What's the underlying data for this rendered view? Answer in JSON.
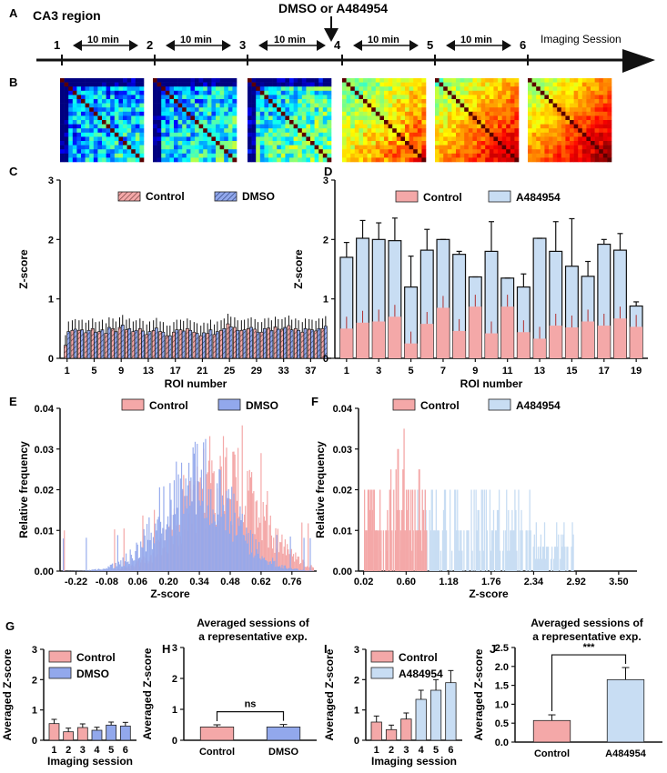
{
  "colors": {
    "control": "#f4a8a8",
    "dmso": "#92a8ec",
    "a484954": "#c8ddf3",
    "axis": "#111111",
    "ctrl_stroke": "#222222"
  },
  "timeline": {
    "panel": "A",
    "region": "CA3 region",
    "drug_label": "DMSO or A484954",
    "sessions": [
      "1",
      "2",
      "3",
      "4",
      "5",
      "6"
    ],
    "interval_label": "10 min",
    "end_label": "Imaging Session"
  },
  "heatmaps": {
    "panel": "B",
    "coherence": [
      0.35,
      0.4,
      0.5,
      0.78,
      0.88,
      0.92
    ]
  },
  "chart_data": [
    {
      "id": "C",
      "type": "bar",
      "ylabel": "Z-score",
      "xlabel": "ROI number",
      "ylim": [
        0,
        3
      ],
      "yticks": [
        "0",
        "1",
        "2",
        "3"
      ],
      "xticks": [
        "1",
        "5",
        "9",
        "13",
        "17",
        "21",
        "25",
        "29",
        "33",
        "37"
      ],
      "legend": [
        "Control",
        "DMSO"
      ],
      "control": [
        0.22,
        0.47,
        0.47,
        0.43,
        0.5,
        0.45,
        0.42,
        0.5,
        0.52,
        0.48,
        0.45,
        0.5,
        0.4,
        0.47,
        0.45,
        0.38,
        0.44,
        0.48,
        0.5,
        0.44,
        0.38,
        0.42,
        0.4,
        0.47,
        0.58,
        0.52,
        0.47,
        0.5,
        0.49,
        0.44,
        0.51,
        0.53,
        0.49,
        0.55,
        0.5,
        0.44,
        0.49,
        0.46,
        0.5
      ],
      "dmso": [
        0.45,
        0.49,
        0.48,
        0.47,
        0.44,
        0.48,
        0.52,
        0.45,
        0.56,
        0.5,
        0.47,
        0.46,
        0.45,
        0.51,
        0.44,
        0.38,
        0.48,
        0.46,
        0.47,
        0.42,
        0.43,
        0.48,
        0.45,
        0.5,
        0.53,
        0.47,
        0.48,
        0.52,
        0.44,
        0.5,
        0.47,
        0.49,
        0.52,
        0.48,
        0.47,
        0.5,
        0.48,
        0.5,
        0.54
      ]
    },
    {
      "id": "D",
      "type": "bar",
      "ylabel": "Z-score",
      "xlabel": "ROI number",
      "ylim": [
        0,
        3
      ],
      "yticks": [
        "0",
        "1",
        "2",
        "3"
      ],
      "xticks": [
        "1",
        "3",
        "5",
        "7",
        "9",
        "11",
        "13",
        "15",
        "17",
        "19"
      ],
      "legend": [
        "Control",
        "A484954"
      ],
      "control": [
        0.5,
        0.6,
        0.62,
        0.7,
        0.25,
        0.58,
        0.85,
        0.46,
        0.87,
        0.42,
        0.87,
        0.44,
        0.33,
        0.55,
        0.52,
        0.62,
        0.55,
        0.67,
        0.53
      ],
      "a484954": [
        1.7,
        2.02,
        2.0,
        1.98,
        1.2,
        1.82,
        2.0,
        1.75,
        1.37,
        1.8,
        1.35,
        1.2,
        2.02,
        1.8,
        1.55,
        1.38,
        1.92,
        1.82,
        0.88
      ]
    },
    {
      "id": "E",
      "type": "histogram",
      "ylabel": "Relative frequency",
      "xlabel": "Z-score",
      "ylim": [
        0,
        0.04
      ],
      "yticks": [
        "0.00",
        "0.01",
        "0.02",
        "0.03",
        "0.04"
      ],
      "xticks": [
        "-0.22",
        "-0.08",
        "0.06",
        "0.20",
        "0.34",
        "0.48",
        "0.62",
        "0.76"
      ],
      "legend": [
        "Control",
        "DMSO"
      ],
      "control_peak": 0.44,
      "dmso_peak": 0.33
    },
    {
      "id": "F",
      "type": "histogram",
      "ylabel": "Relative frequency",
      "xlabel": "Z-score",
      "ylim": [
        0,
        0.04
      ],
      "yticks": [
        "0.00",
        "0.01",
        "0.02",
        "0.03",
        "0.04"
      ],
      "xticks": [
        "0.02",
        "0.60",
        "1.18",
        "1.76",
        "2.34",
        "2.92",
        "3.50"
      ],
      "legend": [
        "Control",
        "A484954"
      ],
      "control_range": [
        0.02,
        0.88
      ],
      "a484954_range": [
        0.75,
        2.9
      ]
    },
    {
      "id": "G",
      "type": "bar",
      "ylabel": "Averaged Z-score",
      "xlabel": "Imaging session",
      "ylim": [
        0,
        3
      ],
      "yticks": [
        "0",
        "1",
        "2",
        "3"
      ],
      "categories": [
        "1",
        "2",
        "3",
        "4",
        "5",
        "6"
      ],
      "legend": [
        "Control",
        "DMSO"
      ],
      "values": [
        0.55,
        0.28,
        0.42,
        0.33,
        0.5,
        0.47
      ],
      "errors": [
        0.14,
        0.12,
        0.12,
        0.1,
        0.1,
        0.12
      ]
    },
    {
      "id": "H",
      "type": "bar",
      "title": "Averaged sessions of a representative exp.",
      "ylabel": "Averaged Z-score",
      "ylim": [
        0,
        3
      ],
      "yticks": [
        "0",
        "1",
        "2",
        "3"
      ],
      "categories": [
        "Control",
        "DMSO"
      ],
      "values": [
        0.43,
        0.43
      ],
      "errors": [
        0.07,
        0.08
      ],
      "significance": "ns"
    },
    {
      "id": "I",
      "type": "bar",
      "ylabel": "Averaged Z-score",
      "xlabel": "Imaging session",
      "ylim": [
        0,
        3
      ],
      "yticks": [
        "0",
        "1",
        "2",
        "3"
      ],
      "categories": [
        "1",
        "2",
        "3",
        "4",
        "5",
        "6"
      ],
      "legend": [
        "Control",
        "A484954"
      ],
      "values": [
        0.6,
        0.35,
        0.7,
        1.35,
        1.65,
        1.9
      ],
      "errors": [
        0.2,
        0.15,
        0.2,
        0.3,
        0.35,
        0.4
      ]
    },
    {
      "id": "J",
      "type": "bar",
      "title": "Averaged sessions of a representative exp.",
      "ylabel": "Averaged Z-score",
      "ylim": [
        0,
        2.5
      ],
      "yticks": [
        "0.0",
        "0.5",
        "1.0",
        "1.5",
        "2.0",
        "2.5"
      ],
      "categories": [
        "Control",
        "A484954"
      ],
      "values": [
        0.57,
        1.65
      ],
      "errors": [
        0.15,
        0.32
      ],
      "significance": "***"
    }
  ]
}
